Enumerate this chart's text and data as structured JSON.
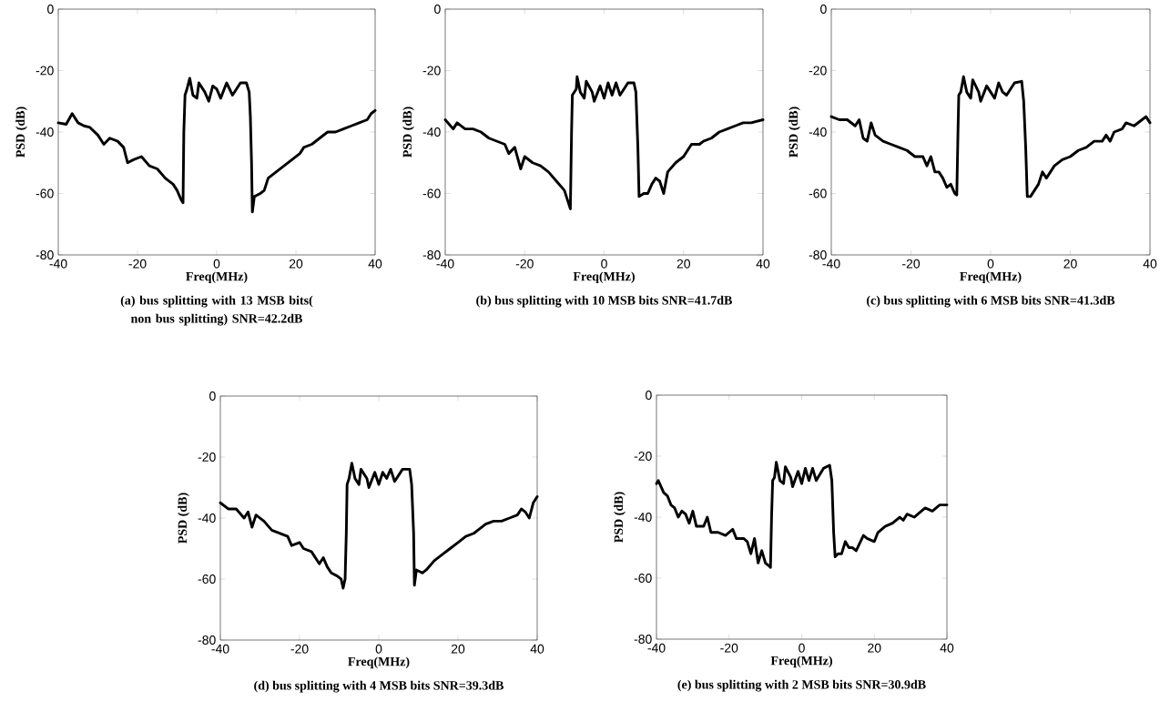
{
  "chart_data": [
    {
      "type": "line",
      "xlabel": "Freq(MHz)",
      "ylabel": "PSD (dB)",
      "annotations": [
        "(a) bus splitting with 13 MSB bits( non bus splitting) SNR=42.2dB"
      ],
      "xlim": [
        -40,
        40
      ],
      "ylim": [
        -80,
        0
      ],
      "xticks": [
        -40,
        -20,
        0,
        20,
        40
      ],
      "yticks": [
        -80,
        -60,
        -40,
        -20,
        0
      ],
      "series": [
        {
          "color": "#000000",
          "x": [
            -40,
            -38,
            -36.5,
            -35,
            -33.5,
            -32,
            -30,
            -28.5,
            -27,
            -25,
            -23.5,
            -22.5,
            -21,
            -19,
            -17,
            -15,
            -13,
            -11,
            -10,
            -9,
            -8.5,
            -8.3,
            -8,
            -7.5,
            -6.8,
            -6,
            -5,
            -4.5,
            -3,
            -2,
            -1,
            0,
            1,
            2.5,
            4,
            5,
            6,
            7.5,
            8.2,
            8.5,
            8.8,
            9,
            9.5,
            11,
            12,
            13,
            15,
            17,
            19,
            21,
            22,
            24,
            26,
            28,
            30,
            32,
            34,
            36,
            38,
            39,
            40
          ],
          "values": [
            -37,
            -37.5,
            -34,
            -37,
            -38,
            -38.5,
            -41,
            -44,
            -42,
            -43,
            -45,
            -50,
            -49,
            -48,
            -51,
            -52,
            -55,
            -57,
            -59,
            -62,
            -63,
            -40,
            -28,
            -26,
            -22.5,
            -28,
            -29,
            -24,
            -27,
            -30,
            -25,
            -26,
            -29,
            -24,
            -28,
            -26,
            -24,
            -24,
            -27,
            -35,
            -50,
            -66,
            -61,
            -60,
            -59,
            -55,
            -53,
            -51,
            -49,
            -47,
            -45,
            -44,
            -42,
            -40,
            -40,
            -39,
            -38,
            -37,
            -36,
            -34,
            -33
          ]
        }
      ]
    },
    {
      "type": "line",
      "xlabel": "Freq(MHz)",
      "ylabel": "PSD (dB)",
      "annotations": [
        "(b) bus splitting with 10 MSB bits SNR=41.7dB"
      ],
      "xlim": [
        -40,
        40
      ],
      "ylim": [
        -80,
        0
      ],
      "xticks": [
        -40,
        -20,
        0,
        20,
        40
      ],
      "yticks": [
        -80,
        -60,
        -40,
        -20,
        0
      ],
      "series": [
        {
          "color": "#000000",
          "x": [
            -40,
            -38,
            -37,
            -35,
            -33,
            -31,
            -29,
            -27,
            -25,
            -24,
            -22.5,
            -21,
            -20,
            -18,
            -16,
            -14,
            -12,
            -10,
            -9,
            -8.5,
            -8.2,
            -8,
            -7,
            -6.8,
            -6,
            -5,
            -4.5,
            -3,
            -2.5,
            -1,
            0,
            1,
            2,
            3,
            4,
            5,
            6,
            7.5,
            8,
            8.5,
            8.8,
            10,
            11,
            12,
            13,
            14,
            15,
            16,
            18,
            20,
            21,
            22,
            24,
            25,
            27,
            29,
            31,
            33,
            35,
            37,
            40
          ],
          "values": [
            -36,
            -39,
            -37,
            -39,
            -39,
            -40,
            -42,
            -43,
            -44,
            -47,
            -45,
            -52,
            -48,
            -50,
            -51,
            -53,
            -56,
            -59,
            -63,
            -65,
            -40,
            -28,
            -26,
            -22,
            -27,
            -29,
            -23.5,
            -27,
            -30,
            -25,
            -29,
            -24,
            -28,
            -24,
            -28,
            -26,
            -24,
            -24,
            -27,
            -45,
            -61,
            -60,
            -60,
            -57,
            -55,
            -56,
            -60,
            -53,
            -50,
            -48,
            -46,
            -44,
            -44,
            -43,
            -42,
            -40,
            -39,
            -38,
            -37,
            -37,
            -36
          ]
        }
      ]
    },
    {
      "type": "line",
      "xlabel": "Freq(MHz)",
      "ylabel": "PSD (dB)",
      "annotations": [
        "(c) bus splitting with 6 MSB bits SNR=41.3dB"
      ],
      "xlim": [
        -40,
        40
      ],
      "ylim": [
        -80,
        0
      ],
      "xticks": [
        -40,
        -20,
        0,
        20,
        40
      ],
      "yticks": [
        -80,
        -60,
        -40,
        -20,
        0
      ],
      "series": [
        {
          "color": "#000000",
          "x": [
            -40,
            -38,
            -36,
            -34,
            -33,
            -32,
            -31,
            -30,
            -29,
            -27,
            -25,
            -23,
            -21,
            -19,
            -17,
            -16,
            -15,
            -14,
            -13,
            -12,
            -11,
            -10,
            -9,
            -8.5,
            -8.2,
            -8,
            -7.5,
            -6.8,
            -6,
            -5,
            -4.5,
            -3,
            -2.5,
            -1,
            0,
            1,
            2,
            3,
            4,
            5,
            6,
            7.8,
            8.3,
            8.8,
            9.2,
            10,
            11,
            12,
            13,
            14,
            15,
            16,
            18,
            20,
            22,
            24,
            26,
            28,
            29,
            30,
            31,
            33,
            34,
            36,
            38,
            39,
            40
          ],
          "values": [
            -35,
            -36,
            -36,
            -38,
            -36,
            -42,
            -43,
            -37,
            -41,
            -43,
            -44,
            -45,
            -46,
            -48,
            -48,
            -51,
            -48,
            -53,
            -53,
            -55,
            -58,
            -57,
            -60,
            -60.5,
            -40,
            -28,
            -27,
            -22,
            -27,
            -29,
            -23,
            -27,
            -30,
            -25,
            -27,
            -29,
            -24,
            -27,
            -28,
            -26,
            -24,
            -23.5,
            -30,
            -45,
            -61,
            -61,
            -59,
            -57,
            -53,
            -55,
            -53,
            -51,
            -49,
            -48,
            -46,
            -45,
            -43,
            -43,
            -41,
            -43,
            -40,
            -39,
            -37,
            -38,
            -36,
            -35,
            -37
          ]
        }
      ]
    },
    {
      "type": "line",
      "xlabel": "Freq(MHz)",
      "ylabel": "PSD (dB)",
      "annotations": [
        "(d) bus splitting with 4 MSB bits SNR=39.3dB"
      ],
      "xlim": [
        -40,
        40
      ],
      "ylim": [
        -80,
        0
      ],
      "xticks": [
        -40,
        -20,
        0,
        20,
        40
      ],
      "yticks": [
        -80,
        -60,
        -40,
        -20,
        0
      ],
      "series": [
        {
          "color": "#000000",
          "x": [
            -40,
            -38,
            -36,
            -34,
            -33,
            -32,
            -31,
            -29,
            -27,
            -25,
            -23,
            -22,
            -20,
            -19,
            -17,
            -15,
            -14,
            -13,
            -12,
            -10.5,
            -9.5,
            -9,
            -8.5,
            -8.2,
            -8,
            -7.5,
            -6.8,
            -6,
            -5,
            -4.5,
            -3,
            -2.5,
            -1,
            0,
            1,
            2,
            3,
            4,
            5,
            6,
            7.8,
            8.3,
            8.8,
            9,
            9.5,
            11,
            12,
            14,
            16,
            18,
            20,
            22,
            24,
            25,
            27,
            29,
            31,
            33,
            35,
            36,
            37,
            38,
            39,
            40
          ],
          "values": [
            -35,
            -37,
            -37,
            -40,
            -38,
            -43,
            -39,
            -41,
            -44,
            -45,
            -46,
            -49,
            -48,
            -50,
            -51,
            -55,
            -53,
            -56,
            -58,
            -59,
            -60,
            -63,
            -60,
            -45,
            -29,
            -27,
            -22,
            -27,
            -29,
            -24,
            -27,
            -30,
            -25,
            -29,
            -25,
            -27,
            -24,
            -28,
            -26,
            -24,
            -24,
            -29,
            -45,
            -62,
            -57,
            -58,
            -57,
            -54,
            -52,
            -50,
            -48,
            -46,
            -45,
            -44,
            -42,
            -41,
            -41,
            -40,
            -39,
            -37,
            -38,
            -40,
            -35,
            -33
          ]
        }
      ]
    },
    {
      "type": "line",
      "xlabel": "Freq(MHz)",
      "ylabel": "PSD (dB)",
      "annotations": [
        "(e) bus splitting with 2 MSB bits SNR=30.9dB"
      ],
      "xlim": [
        -40,
        40
      ],
      "ylim": [
        -80,
        0
      ],
      "xticks": [
        -40,
        -20,
        0,
        20,
        40
      ],
      "yticks": [
        -80,
        -60,
        -40,
        -20,
        0
      ],
      "series": [
        {
          "color": "#000000",
          "x": [
            -40,
            -39.5,
            -38,
            -37,
            -36,
            -35,
            -34,
            -33,
            -32,
            -31,
            -30,
            -29,
            -27,
            -26,
            -25,
            -23,
            -21,
            -19,
            -18,
            -16,
            -15,
            -14,
            -13,
            -12,
            -11,
            -10,
            -9,
            -8.6,
            -8.3,
            -8,
            -7.5,
            -7,
            -6,
            -5,
            -4.5,
            -3,
            -2.5,
            -1,
            0,
            1,
            2,
            3,
            4,
            5,
            6,
            7.7,
            8.3,
            8.8,
            9.2,
            10,
            11,
            12,
            13,
            14,
            15,
            17,
            18,
            20,
            21,
            23,
            25,
            27,
            28,
            29,
            31,
            32,
            34,
            36,
            37,
            38,
            40
          ],
          "values": [
            -29,
            -28,
            -32,
            -33,
            -36,
            -37,
            -40,
            -38,
            -39,
            -42,
            -38,
            -43,
            -43,
            -40,
            -45,
            -45,
            -46,
            -44,
            -47,
            -47,
            -48,
            -52,
            -47,
            -55,
            -51,
            -55,
            -56,
            -56.5,
            -40,
            -28,
            -27,
            -22,
            -28,
            -29,
            -23.5,
            -27,
            -30,
            -25,
            -29,
            -24,
            -28,
            -24,
            -28,
            -26,
            -24,
            -23,
            -28,
            -45,
            -53,
            -52,
            -52,
            -48,
            -50,
            -50,
            -51,
            -46,
            -47,
            -48,
            -45,
            -43,
            -42,
            -40,
            -41,
            -39,
            -40,
            -39,
            -37,
            -38,
            -37,
            -36,
            -36
          ]
        }
      ]
    }
  ]
}
